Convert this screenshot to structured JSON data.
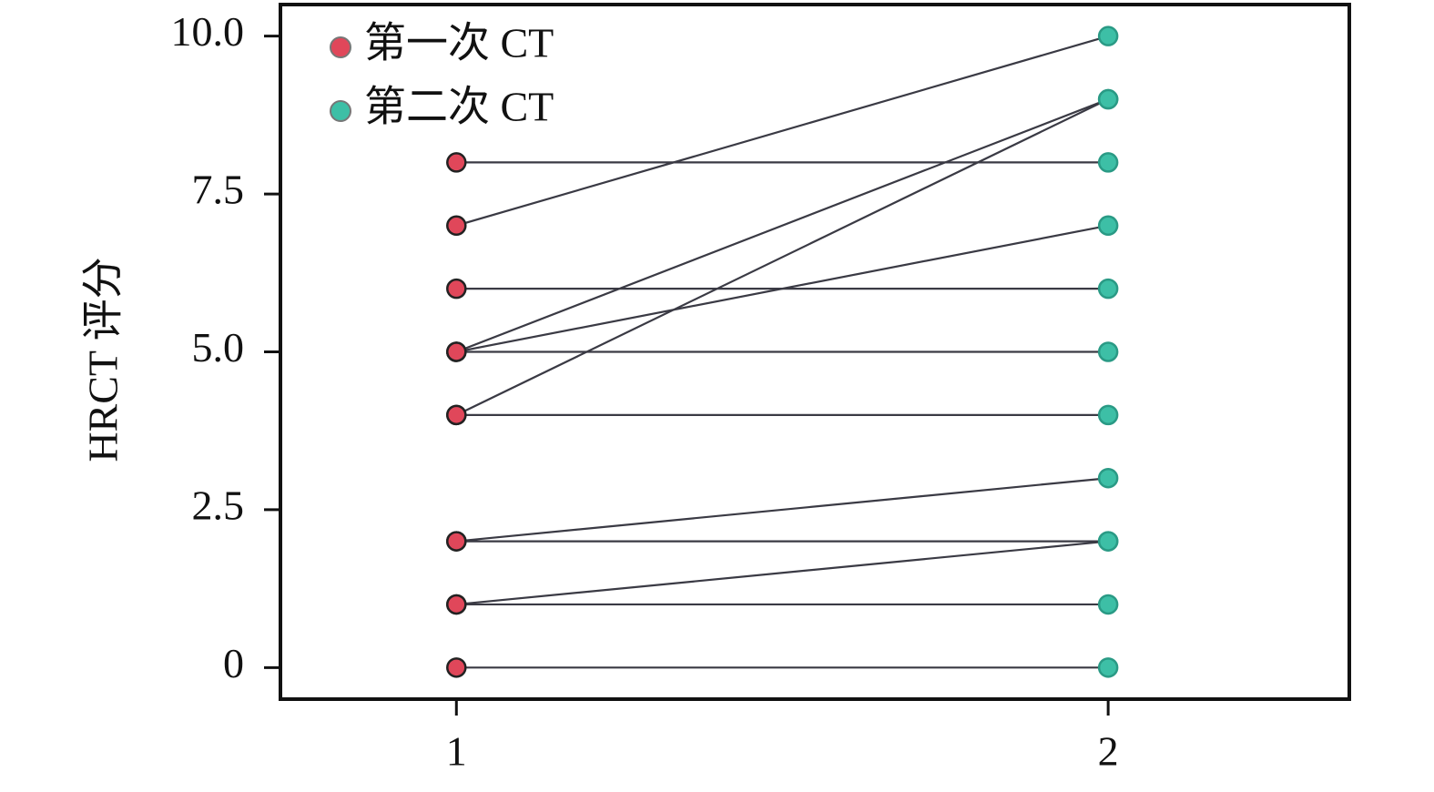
{
  "chart_data": {
    "type": "paired-dot",
    "y_label": "HRCT 评分",
    "xlim": [
      0.73,
      2.37
    ],
    "xticks": [
      1,
      2
    ],
    "ylim": [
      -0.5,
      10.5
    ],
    "yticks": [
      0,
      2.5,
      {
        "value": 5,
        "label": "5.0"
      },
      7.5,
      {
        "value": 10,
        "label": "10.0"
      }
    ],
    "line_color": "#3a3a44",
    "legend": "upper-left",
    "series": [
      {
        "name": "第一次 CT",
        "color": "#e0475a",
        "x": 1,
        "values": [
          0,
          1,
          1,
          2,
          2,
          4,
          4,
          5,
          5,
          5,
          6,
          7,
          8
        ]
      },
      {
        "name": "第二次 CT",
        "color": "#3dbfa6",
        "x": 2,
        "values": [
          0,
          1,
          2,
          2,
          3,
          4,
          9,
          5,
          7,
          9,
          6,
          10,
          8
        ]
      }
    ]
  }
}
